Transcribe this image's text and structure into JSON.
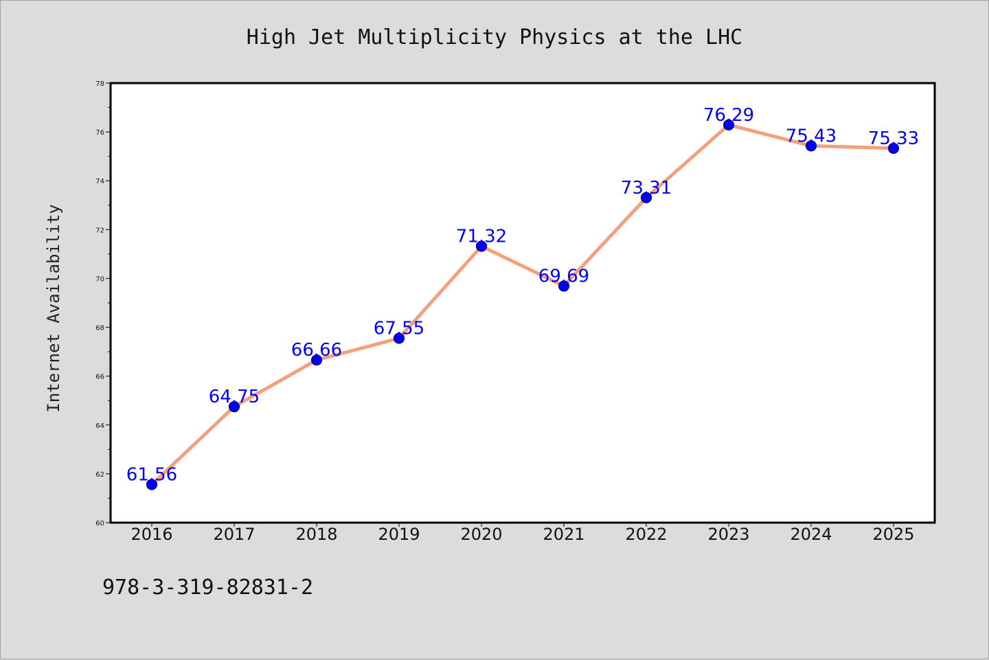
{
  "chart_data": {
    "type": "line",
    "title": "High Jet Multiplicity Physics at the LHC",
    "xlabel": "",
    "ylabel": "Internet Availability",
    "categories": [
      "2016",
      "2017",
      "2018",
      "2019",
      "2020",
      "2021",
      "2022",
      "2023",
      "2024",
      "2025"
    ],
    "series": [
      {
        "values": [
          61.56,
          64.75,
          66.66,
          67.55,
          71.32,
          69.69,
          73.31,
          76.29,
          75.43,
          75.33
        ]
      }
    ],
    "data_labels": [
      "61.56",
      "64.75",
      "66.66",
      "67.55",
      "71.32",
      "69.69",
      "73.31",
      "76.29",
      "75.43",
      "75.33"
    ],
    "ylim": [
      60,
      78
    ],
    "y_ticks": [
      "60",
      "62",
      "64",
      "66",
      "68",
      "70",
      "72",
      "74",
      "76",
      "78"
    ],
    "grid": false,
    "legend": "none",
    "colors": {
      "line": "#f4a07c",
      "marker": "#0000ee",
      "marker_edge": "#00008b",
      "label": "#0000ff",
      "plot_bg": "#ffffff",
      "page_bg": "#dcdcdc"
    }
  },
  "footer": {
    "text": "978-3-319-82831-2"
  }
}
